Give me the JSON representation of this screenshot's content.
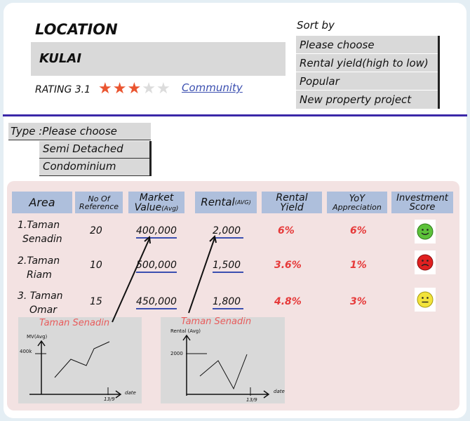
{
  "location": {
    "title": "LOCATION",
    "value": "KULAI"
  },
  "rating": {
    "label": "RATING 3.1",
    "stars_filled": 3,
    "stars_total": 5,
    "community_link": "Community"
  },
  "sort": {
    "label": "Sort by",
    "options": [
      "Please choose",
      "Rental yield(high to low)",
      "Popular",
      "New property project"
    ]
  },
  "type": {
    "label": "Type :Please choose",
    "options": [
      "Semi Detached",
      "Condominium"
    ]
  },
  "table": {
    "headers": {
      "area": "Area",
      "refs_1": "No Of",
      "refs_2": "Reference",
      "market_1": "Market",
      "market_2": "Value",
      "market_sub": "(Avg)",
      "rental": "Rental",
      "rental_sub": "(AVG)",
      "yield_1": "Rental",
      "yield_2": "Yield",
      "yoy_1": "YoY",
      "yoy_2": "Appreciation",
      "score_1": "Investment",
      "score_2": "Score"
    },
    "rows": [
      {
        "area_1": "1.Taman",
        "area_2": "Senadin",
        "refs": "20",
        "market": "400,000",
        "rental": "2,000",
        "yield": "6%",
        "yoy": "6%",
        "score": "happy"
      },
      {
        "area_1": "2.Taman",
        "area_2": "Riam",
        "refs": "10",
        "market": "500,000",
        "rental": "1,500",
        "yield": "3.6%",
        "yoy": "1%",
        "score": "sad"
      },
      {
        "area_1": "3. Taman",
        "area_2": "Omar",
        "refs": "15",
        "market": "450,000",
        "rental": "1,800",
        "yield": "4.8%",
        "yoy": "3%",
        "score": "neutral"
      }
    ]
  },
  "colors": {
    "accent_red": "#e63a3a",
    "header_blue": "#aebfdc",
    "panel_pink": "#f3e2e2",
    "star": "#ea5530",
    "happy": "#5cc23a",
    "sad": "#e02020",
    "neutral": "#f2e33a"
  },
  "charts": [
    {
      "title": "Taman Senadin",
      "ylabel": "MV(Avg)",
      "ytick": "400k",
      "xlabel": "date",
      "xtick": "13/9"
    },
    {
      "title": "Taman Senadin",
      "ylabel": "Rental (Avg)",
      "ytick": "2000",
      "xlabel": "date",
      "xtick": "13/9"
    }
  ]
}
